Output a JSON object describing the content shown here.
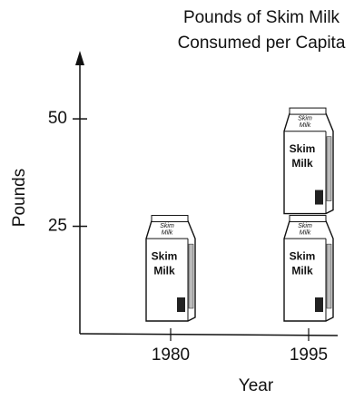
{
  "chart_data": {
    "type": "pictograph",
    "title_lines": [
      "Pounds of Skim Milk",
      "Consumed per Capita"
    ],
    "y_label": "Pounds",
    "x_label": "Year",
    "categories": [
      "1980",
      "1995"
    ],
    "values": [
      25,
      50
    ],
    "unit": 25,
    "icon_label_lines": [
      "Skim",
      "Milk"
    ],
    "ylim": [
      0,
      65
    ],
    "yticks": [
      25,
      50
    ]
  }
}
